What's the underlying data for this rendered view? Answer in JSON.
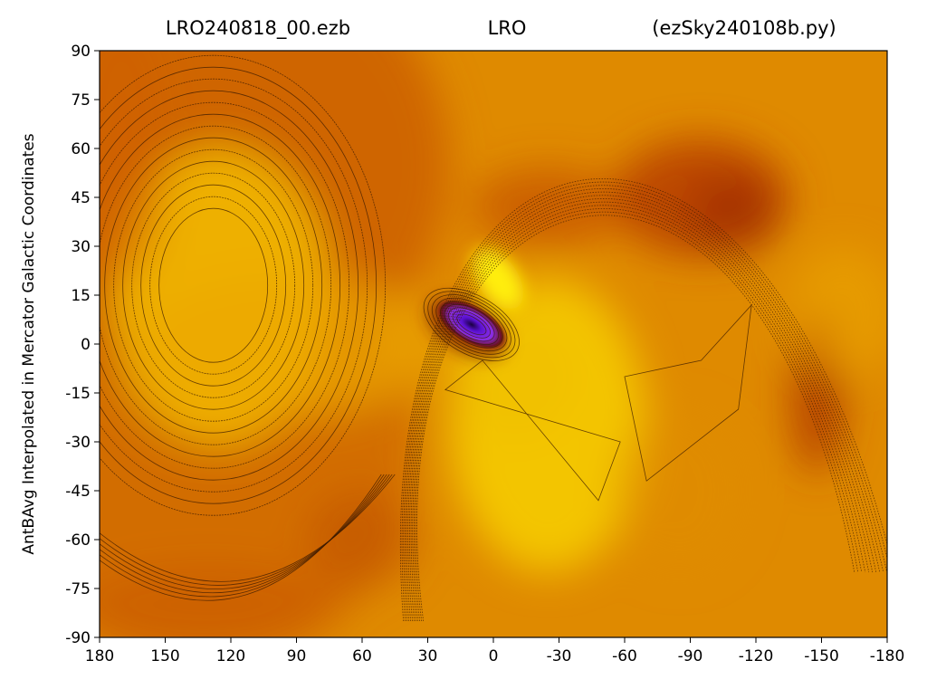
{
  "chart_data": {
    "type": "heatmap",
    "title_parts": {
      "left": "LRO240818_00.ezb",
      "center": "LRO",
      "right": "(ezSky240108b.py)"
    },
    "xlabel": "",
    "ylabel": "AntBAvg Interpolated in Mercator Galactic Coordinates",
    "xlim": [
      180,
      -180
    ],
    "ylim": [
      -90,
      90
    ],
    "x_ticks": [
      "180",
      "150",
      "120",
      "90",
      "60",
      "30",
      "0",
      "-30",
      "-60",
      "-90",
      "-120",
      "-150",
      "-180"
    ],
    "y_ticks": [
      "90",
      "75",
      "60",
      "45",
      "30",
      "15",
      "0",
      "-15",
      "-30",
      "-45",
      "-60",
      "-75",
      "-90"
    ],
    "x_tick_values": [
      180,
      150,
      120,
      90,
      60,
      30,
      0,
      -30,
      -60,
      -90,
      -120,
      -150,
      -180
    ],
    "y_tick_values": [
      90,
      75,
      60,
      45,
      30,
      15,
      0,
      -15,
      -30,
      -45,
      -60,
      -75,
      -90
    ],
    "colormap": [
      "#3b00b0",
      "#6a1bd8",
      "#8b2fe0",
      "#5a0f0f",
      "#b23a00",
      "#d06000",
      "#e08a00",
      "#f0b400",
      "#ffe000"
    ],
    "background_level_color": "#df8a00",
    "features": [
      {
        "kind": "low",
        "lon": 10,
        "lat": 6,
        "color": "#7a22e8"
      },
      {
        "kind": "high",
        "lon": -2,
        "lat": 18,
        "color": "#ffee10"
      },
      {
        "kind": "high",
        "lon": -25,
        "lat": -25,
        "color": "#f6cf00"
      },
      {
        "kind": "high",
        "lon": 125,
        "lat": 20,
        "color": "#f0b800"
      },
      {
        "kind": "low",
        "lon": 135,
        "lat": 55,
        "color": "#cc5a00"
      },
      {
        "kind": "low",
        "lon": -95,
        "lat": 45,
        "color": "#b23a00"
      },
      {
        "kind": "low",
        "lon": -148,
        "lat": -15,
        "color": "#b23a00"
      }
    ],
    "grid": false
  }
}
